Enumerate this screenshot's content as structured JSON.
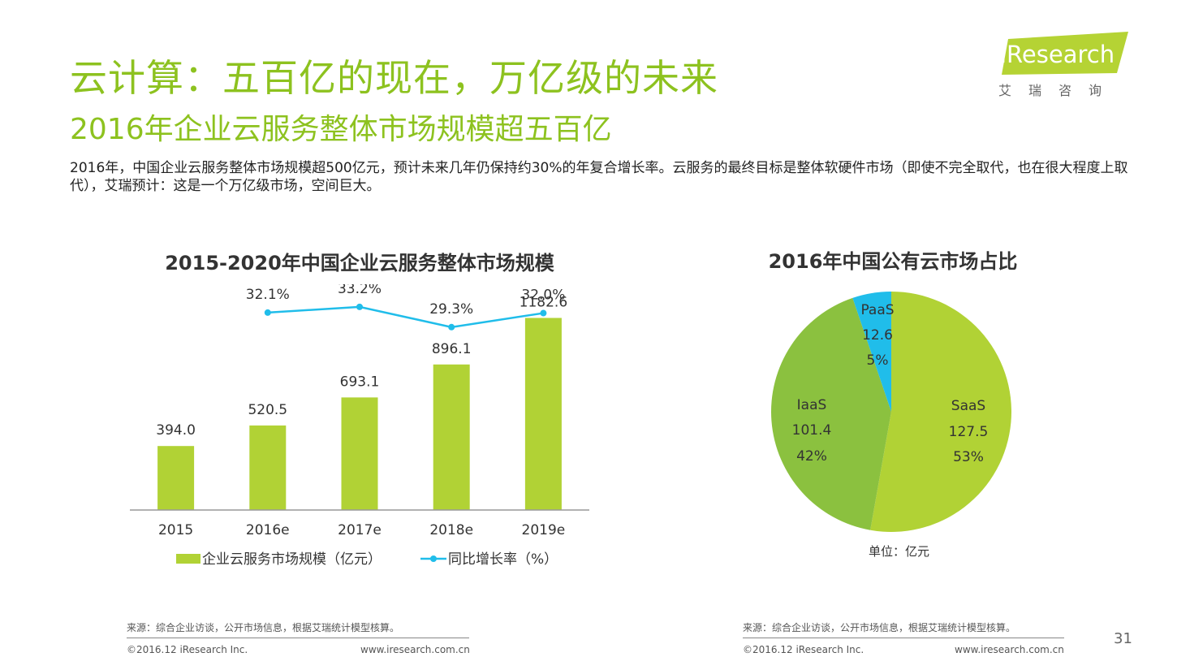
{
  "header": {
    "title": "云计算：五百亿的现在，万亿级的未来",
    "subtitle": "2016年企业云服务整体市场规模超五百亿",
    "description": "2016年，中国企业云服务整体市场规模超500亿元，预计未来几年仍保持约30%的年复合增长率。云服务的最终目标是整体软硬件市场（即使不完全取代，也在很大程度上取代），艾瑞预计：这是一个万亿级市场，空间巨大。"
  },
  "brand": {
    "logo_text": "iResearch",
    "logo_sub": "艾瑞咨询",
    "accent_color": "#b5d334"
  },
  "chart_data": [
    {
      "type": "bar",
      "title": "2015-2020年中国企业云服务整体市场规模",
      "categories": [
        "2015",
        "2016e",
        "2017e",
        "2018e",
        "2019e"
      ],
      "series": [
        {
          "name": "企业云服务市场规模（亿元）",
          "type": "bar",
          "values": [
            394.0,
            520.5,
            693.1,
            896.1,
            1182.6
          ],
          "labels": [
            "394.0",
            "520.5",
            "693.1",
            "896.1",
            "1182.6"
          ],
          "color": "#b1d235"
        },
        {
          "name": "同比增长率（%）",
          "type": "line",
          "values": [
            null,
            32.1,
            33.2,
            29.3,
            32.0
          ],
          "labels": [
            "",
            "32.1%",
            "33.2%",
            "29.3%",
            "32.0%"
          ],
          "color": "#20bdea"
        }
      ],
      "ylim": [
        0,
        1400
      ],
      "y2lim": [
        0,
        36
      ],
      "grid": false,
      "legend": "bottom"
    },
    {
      "type": "pie",
      "title": "2016年中国公有云市场占比",
      "slices": [
        {
          "label": "SaaS",
          "value": 127.5,
          "percent": "53%",
          "value_label": "127.5",
          "color": "#b1d235"
        },
        {
          "label": "IaaS",
          "value": 101.4,
          "percent": "42%",
          "value_label": "101.4",
          "color": "#8bc13f"
        },
        {
          "label": "PaaS",
          "value": 12.6,
          "percent": "5%",
          "value_label": "12.6",
          "color": "#20bdea"
        }
      ],
      "unit_note": "单位：亿元"
    }
  ],
  "footer": {
    "left": {
      "source": "来源：综合企业访谈，公开市场信息，根据艾瑞统计模型核算。",
      "copyright": "©2016.12 iResearch Inc.",
      "website": "www.iresearch.com.cn"
    },
    "right": {
      "source": "来源：综合企业访谈，公开市场信息，根据艾瑞统计模型核算。",
      "copyright": "©2016.12 iResearch Inc.",
      "website": "www.iresearch.com.cn"
    },
    "page_number": "31"
  }
}
